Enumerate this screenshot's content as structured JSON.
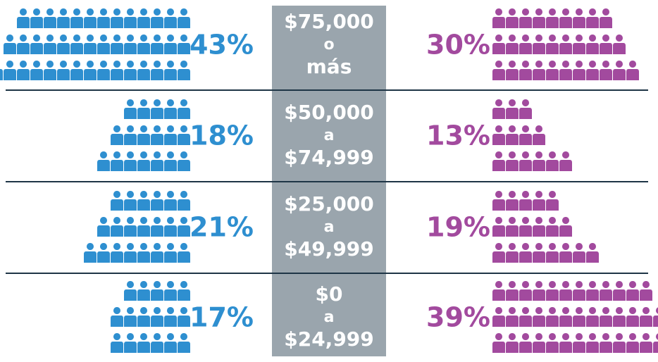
{
  "chart_data": {
    "type": "pictogram",
    "categories": [
      [
        "$75,000",
        "o",
        "más"
      ],
      [
        "$50,000",
        "a",
        "$74,999"
      ],
      [
        "$25,000",
        "a",
        "$49,999"
      ],
      [
        "$0",
        "a",
        "$24,999"
      ]
    ],
    "series": [
      {
        "color": "#2e8fd0",
        "values": [
          43,
          18,
          21,
          17
        ],
        "value_labels": [
          "43%",
          "18%",
          "21%",
          "17%"
        ]
      },
      {
        "color": "#a24a9e",
        "values": [
          30,
          13,
          19,
          39
        ],
        "value_labels": [
          "30%",
          "13%",
          "19%",
          "39%"
        ]
      }
    ]
  }
}
